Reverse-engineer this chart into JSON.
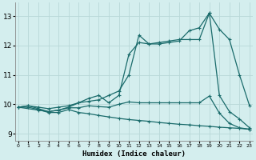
{
  "xlabel": "Humidex (Indice chaleur)",
  "bg_color": "#d4eeee",
  "grid_color": "#b8d8d8",
  "line_color": "#1a6b6b",
  "x_ticks": [
    0,
    1,
    2,
    3,
    4,
    5,
    6,
    7,
    8,
    9,
    10,
    11,
    12,
    13,
    14,
    15,
    16,
    17,
    18,
    19,
    20,
    21,
    22,
    23
  ],
  "y_ticks": [
    9,
    10,
    11,
    12,
    13
  ],
  "xlim": [
    -0.3,
    23.3
  ],
  "ylim": [
    8.75,
    13.45
  ],
  "series": [
    {
      "x": [
        0,
        1,
        2,
        3,
        4,
        5,
        6,
        7,
        8,
        9,
        10,
        11,
        12,
        13,
        14,
        15,
        16,
        17,
        18,
        19,
        20,
        21,
        22,
        23
      ],
      "y": [
        9.9,
        9.95,
        9.9,
        9.85,
        9.9,
        9.95,
        10.05,
        10.1,
        10.15,
        10.3,
        10.45,
        11.0,
        12.35,
        12.05,
        12.1,
        12.15,
        12.2,
        12.2,
        12.2,
        13.1,
        10.3,
        9.75,
        9.5,
        9.2
      ]
    },
    {
      "x": [
        0,
        2,
        3,
        4,
        5,
        6,
        7,
        8,
        9,
        10,
        11,
        12,
        13,
        14,
        15,
        16,
        17,
        18,
        19,
        20,
        21,
        22,
        23
      ],
      "y": [
        9.9,
        9.8,
        9.75,
        9.8,
        9.9,
        10.05,
        10.2,
        10.3,
        10.05,
        10.3,
        11.7,
        12.1,
        12.05,
        12.05,
        12.1,
        12.15,
        12.5,
        12.6,
        13.1,
        12.55,
        12.2,
        11.0,
        9.95
      ]
    },
    {
      "x": [
        0,
        1,
        2,
        3,
        4,
        5,
        6,
        7,
        8,
        9,
        10,
        11,
        12,
        13,
        14,
        15,
        16,
        17,
        18,
        19,
        20,
        21,
        22,
        23
      ],
      "y": [
        9.9,
        9.95,
        9.85,
        9.75,
        9.8,
        9.88,
        9.88,
        9.95,
        9.92,
        9.9,
        10.0,
        10.08,
        10.05,
        10.05,
        10.05,
        10.05,
        10.05,
        10.05,
        10.05,
        10.28,
        9.7,
        9.35,
        9.2,
        9.15
      ]
    },
    {
      "x": [
        0,
        1,
        2,
        3,
        4,
        5,
        6,
        7,
        8,
        9,
        10,
        11,
        12,
        13,
        14,
        15,
        16,
        17,
        18,
        19,
        20,
        21,
        22,
        23
      ],
      "y": [
        9.9,
        9.9,
        9.82,
        9.72,
        9.72,
        9.82,
        9.72,
        9.68,
        9.62,
        9.57,
        9.52,
        9.48,
        9.45,
        9.42,
        9.38,
        9.35,
        9.32,
        9.3,
        9.27,
        9.25,
        9.22,
        9.2,
        9.18,
        9.15
      ]
    }
  ]
}
